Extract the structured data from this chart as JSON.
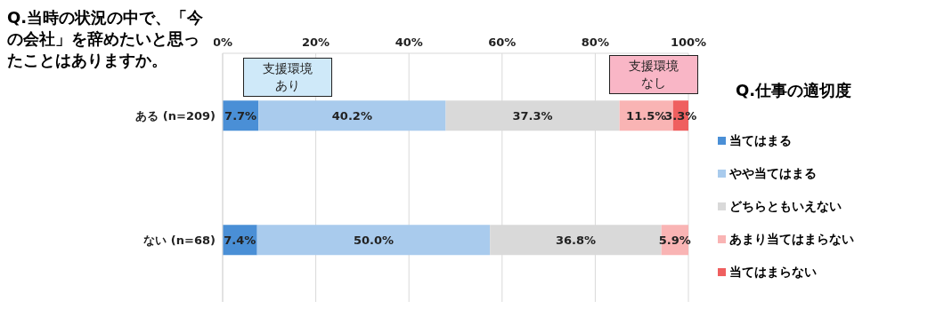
{
  "chart_data": {
    "type": "bar",
    "orientation": "horizontal",
    "stacked": true,
    "title": "Q.当時の状況の中で、「今の会社」を辞めたいと思ったことはありますか。",
    "legend_title": "Q.仕事の適切度",
    "categories": [
      "ある (n=209)",
      "ない (n=68)"
    ],
    "series": [
      {
        "name": "当てはまる",
        "color": "#4a8fd6",
        "values": [
          7.7,
          7.4
        ],
        "value_labels": [
          "7.7%",
          "7.4%"
        ]
      },
      {
        "name": "やや当てはまる",
        "color": "#a9cbed",
        "values": [
          40.2,
          50.0
        ],
        "value_labels": [
          "40.2%",
          "50.0%"
        ]
      },
      {
        "name": "どちらともいえない",
        "color": "#d9d9d9",
        "values": [
          37.3,
          36.8
        ],
        "value_labels": [
          "37.3%",
          "36.8%"
        ]
      },
      {
        "name": "あまり当てはまらない",
        "color": "#f9b4b4",
        "values": [
          11.5,
          5.9
        ],
        "value_labels": [
          "11.5%",
          "5.9%"
        ]
      },
      {
        "name": "当てはまらない",
        "color": "#ef5f5f",
        "values": [
          3.3,
          null
        ],
        "value_labels": [
          "3.3%",
          null
        ]
      }
    ],
    "xlim": [
      0,
      100
    ],
    "xticks": [
      {
        "value": 0,
        "label": "0%"
      },
      {
        "value": 20,
        "label": "20%"
      },
      {
        "value": 40,
        "label": "40%"
      },
      {
        "value": 60,
        "label": "60%"
      },
      {
        "value": 80,
        "label": "80%"
      },
      {
        "value": 100,
        "label": "100%"
      }
    ],
    "grid": "x",
    "legend": "right",
    "annotations": [
      "支援環境あり",
      "支援環境なし"
    ]
  }
}
